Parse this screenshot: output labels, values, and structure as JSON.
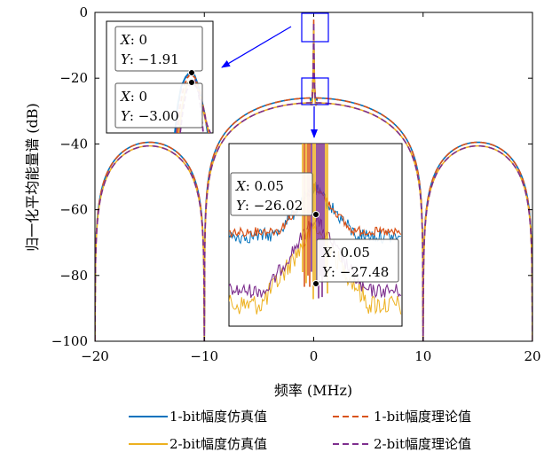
{
  "chart_data": {
    "type": "line",
    "title": "",
    "xlabel": "频率 (MHz)",
    "ylabel": "归一化平均能量谱 (dB)",
    "xlim": [
      -20,
      20
    ],
    "ylim": [
      -100,
      0
    ],
    "x_ticks": [
      "−20",
      "−10",
      "0",
      "10",
      "20"
    ],
    "y_ticks": [
      "0",
      "−20",
      "−40",
      "−60",
      "−80",
      "−100"
    ],
    "grid": false,
    "legend_placement": "bottom",
    "colors": {
      "sim1": "#0072BD",
      "theory1": "#D95319",
      "sim2": "#EDB120",
      "theory2": "#7E2F8E",
      "arrow": "#0000FF"
    },
    "series": [
      {
        "name": "1-bit幅度仿真值",
        "style": "solid",
        "color": "#0072BD"
      },
      {
        "name": "1-bit幅度理论值",
        "style": "dashed",
        "color": "#D95319"
      },
      {
        "name": "2-bit幅度仿真值",
        "style": "solid",
        "color": "#EDB120"
      },
      {
        "name": "2-bit幅度理论值",
        "style": "dashed",
        "color": "#7E2F8E"
      }
    ],
    "envelope": {
      "note_values": "sinc-squared spectral envelope with nulls at ±10 and ±20 MHz",
      "main_lobe_peak": -26.02,
      "main_lobe_peak_2bit": -27.48,
      "side_lobe_peak": -39.5,
      "side_lobe_peak_2bit": -40.6,
      "null_floor": -100,
      "null_positions": [
        -20,
        -10,
        10,
        20
      ],
      "center_spike_peak": -1.91,
      "center_spike_peak_2bit": -3.0,
      "center_spike_halfwidth": 0.35
    },
    "annotations": [
      {
        "series": "1-bit",
        "x_label": "X",
        "x_value": ": 0",
        "y_label": "Y",
        "y_value": ": −1.91",
        "x": 0,
        "y": -1.91
      },
      {
        "series": "2-bit",
        "x_label": "X",
        "x_value": ": 0",
        "y_label": "Y",
        "y_value": ": −3.00",
        "x": 0,
        "y": -3.0
      },
      {
        "series": "1-bit",
        "x_label": "X",
        "x_value": ": 0.05",
        "y_label": "Y",
        "y_value": ": −26.02",
        "x": 0.05,
        "y": -26.02
      },
      {
        "series": "2-bit",
        "x_label": "X",
        "x_value": ": 0.05",
        "y_label": "Y",
        "y_value": ": −27.48",
        "x": 0.05,
        "y": -27.48
      }
    ],
    "zoom_regions": [
      {
        "target": "peak",
        "x_range": [
          -0.1,
          0.1
        ],
        "y_range": [
          -5,
          0
        ]
      },
      {
        "target": "main-lobe-top",
        "x_range": [
          -0.5,
          0.5
        ],
        "y_range": [
          -30,
          -24
        ]
      }
    ]
  }
}
